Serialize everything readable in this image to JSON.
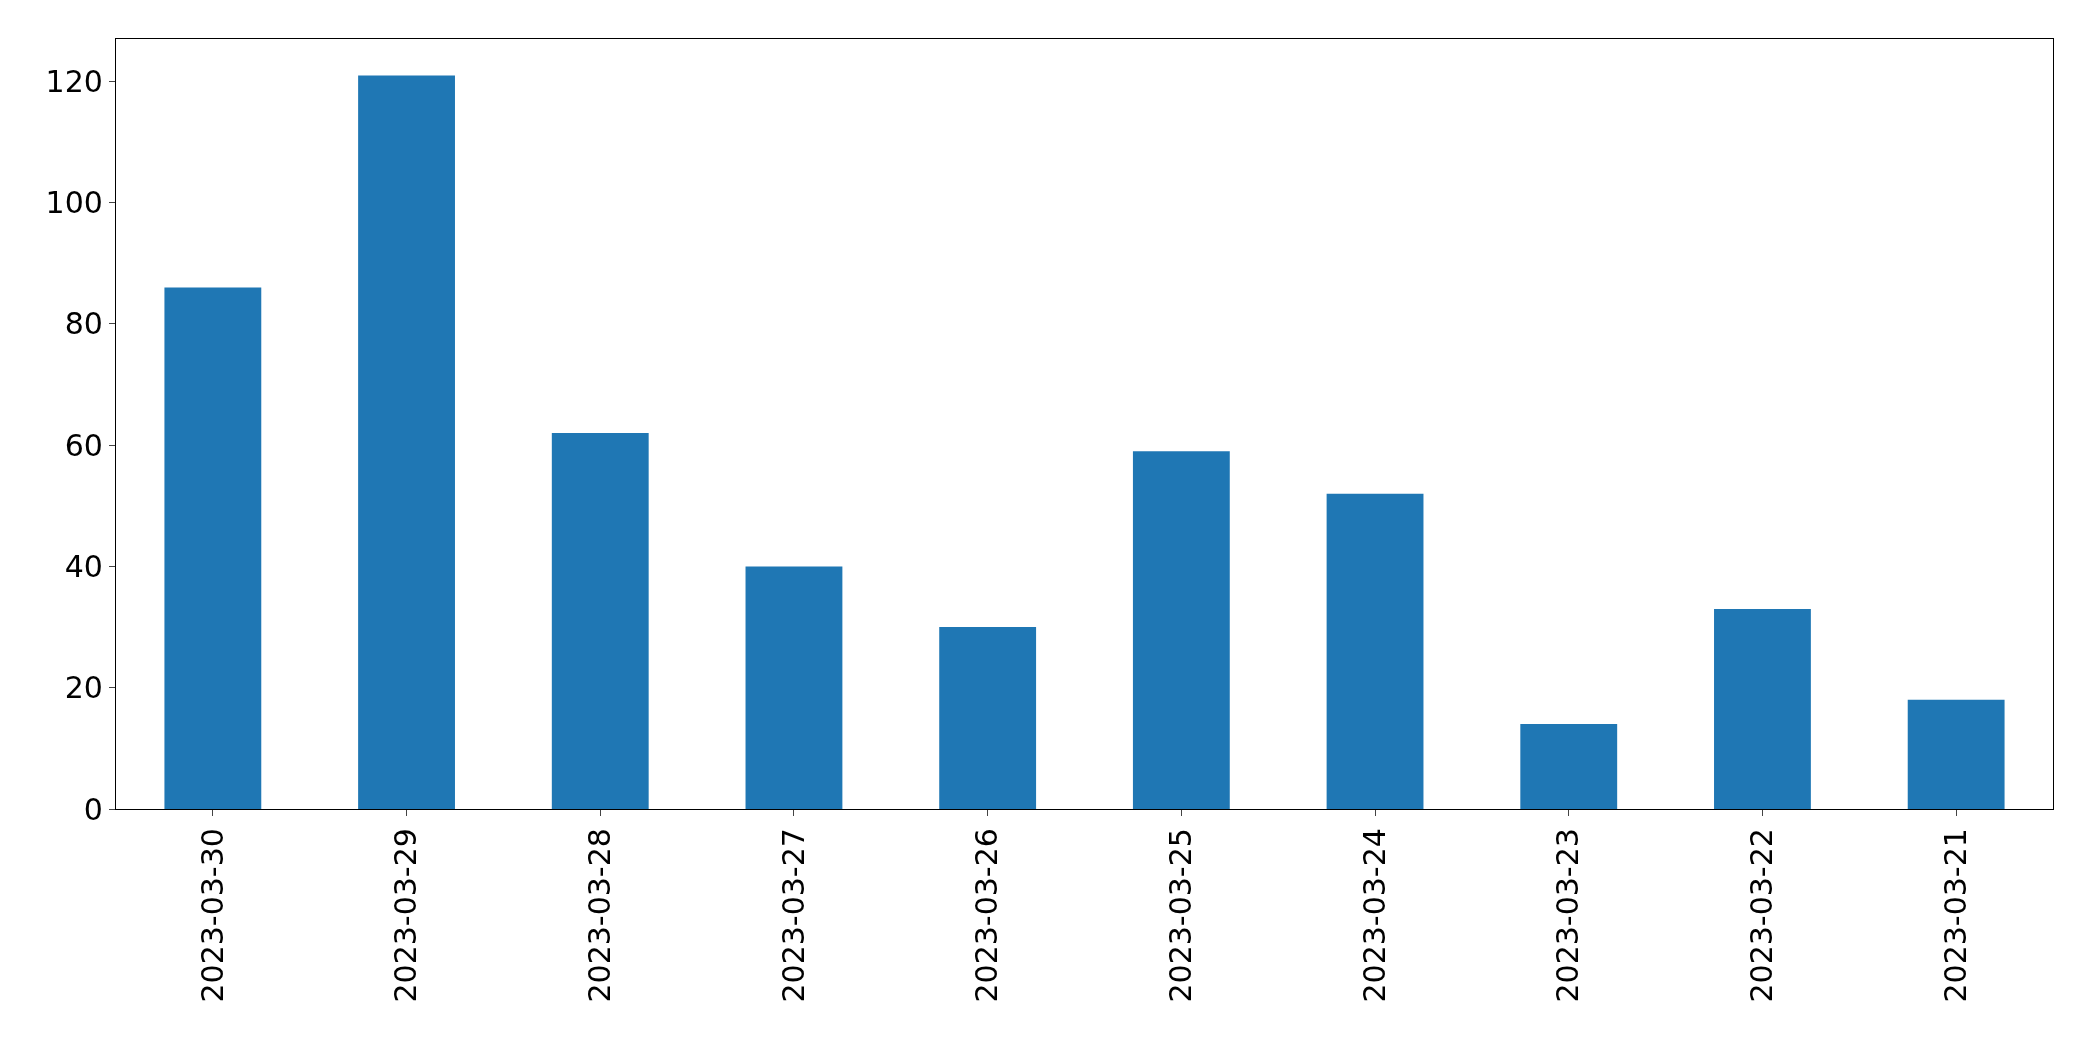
{
  "chart_data": {
    "type": "bar",
    "categories": [
      "2023-03-30",
      "2023-03-29",
      "2023-03-28",
      "2023-03-27",
      "2023-03-26",
      "2023-03-25",
      "2023-03-24",
      "2023-03-23",
      "2023-03-22",
      "2023-03-21"
    ],
    "values": [
      86,
      121,
      62,
      40,
      30,
      59,
      52,
      14,
      33,
      18
    ],
    "color": "#1f77b4",
    "ylim": [
      0,
      127
    ],
    "yticks": [
      0,
      20,
      40,
      60,
      80,
      100,
      120
    ],
    "grid": false,
    "legend": false
  }
}
